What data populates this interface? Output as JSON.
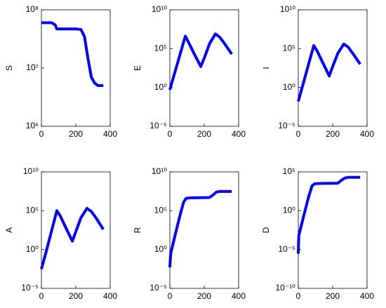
{
  "chart_data": [
    {
      "type": "line",
      "ylabel": "S",
      "log_y": true,
      "xlim": [
        0,
        400
      ],
      "xticks": [
        0,
        200,
        400
      ],
      "ylim": [
        1000000,
        100000000
      ],
      "yticks": [
        {
          "value": 1000000,
          "label": "10⁶"
        },
        {
          "value": 10000000,
          "label": "10⁷"
        },
        {
          "value": 100000000,
          "label": "10⁸"
        }
      ],
      "series": [
        {
          "color": "#0000ff",
          "x": [
            0,
            60,
            80,
            90,
            200,
            230,
            250,
            270,
            290,
            310,
            330,
            360
          ],
          "values": [
            60000000,
            60000000,
            55000000,
            47000000,
            47000000,
            46000000,
            35000000,
            15000000,
            7000000,
            5500000,
            5000000,
            5000000
          ]
        }
      ]
    },
    {
      "type": "line",
      "ylabel": "E",
      "log_y": true,
      "xlim": [
        0,
        400
      ],
      "xticks": [
        0,
        200,
        400
      ],
      "ylim": [
        1e-05,
        10000000000
      ],
      "yticks": [
        {
          "value": 1e-05,
          "label": "10⁻⁵"
        },
        {
          "value": 1,
          "label": "10⁰"
        },
        {
          "value": 100000,
          "label": "10⁵"
        },
        {
          "value": 10000000000,
          "label": "10¹⁰"
        }
      ],
      "series": [
        {
          "color": "#0000ff",
          "x": [
            0,
            30,
            60,
            90,
            110,
            140,
            180,
            200,
            230,
            265,
            290,
            320,
            360
          ],
          "values": [
            0.5,
            100,
            20000,
            4000000,
            600000,
            25000,
            500,
            6000,
            400000,
            8000000,
            3000000,
            400000,
            20000
          ]
        }
      ]
    },
    {
      "type": "line",
      "ylabel": "I",
      "log_y": true,
      "xlim": [
        0,
        400
      ],
      "xticks": [
        0,
        200,
        400
      ],
      "ylim": [
        1e-05,
        10000000000
      ],
      "yticks": [
        {
          "value": 1e-05,
          "label": "10⁻⁵"
        },
        {
          "value": 1,
          "label": "10⁰"
        },
        {
          "value": 100000,
          "label": "10⁵"
        },
        {
          "value": 10000000000,
          "label": "10¹⁰"
        }
      ],
      "series": [
        {
          "color": "#0000ff",
          "x": [
            0,
            30,
            60,
            90,
            110,
            140,
            180,
            200,
            230,
            265,
            290,
            320,
            360
          ],
          "values": [
            0.016,
            4,
            1000,
            250000,
            50000,
            2000,
            30,
            500,
            25000,
            400000,
            160000,
            20000,
            1000
          ]
        }
      ]
    },
    {
      "type": "line",
      "ylabel": "A",
      "log_y": true,
      "xlim": [
        0,
        400
      ],
      "xticks": [
        0,
        200,
        400
      ],
      "ylim": [
        1e-05,
        10000000000
      ],
      "yticks": [
        {
          "value": 1e-05,
          "label": "10⁻⁵"
        },
        {
          "value": 1,
          "label": "10⁰"
        },
        {
          "value": 100000,
          "label": "10⁵"
        },
        {
          "value": 10000000000,
          "label": "10¹⁰"
        }
      ],
      "series": [
        {
          "color": "#0000ff",
          "x": [
            0,
            30,
            60,
            90,
            110,
            140,
            180,
            200,
            230,
            265,
            290,
            320,
            360
          ],
          "values": [
            0.003,
            0.8,
            300,
            100000,
            20000,
            800,
            12,
            200,
            12000,
            200000,
            80000,
            10000,
            400
          ]
        }
      ]
    },
    {
      "type": "line",
      "ylabel": "R",
      "log_y": true,
      "xlim": [
        0,
        400
      ],
      "xticks": [
        0,
        200,
        400
      ],
      "ylim": [
        1e-05,
        10000000000
      ],
      "yticks": [
        {
          "value": 1e-05,
          "label": "10⁻⁵"
        },
        {
          "value": 1,
          "label": "10⁰"
        },
        {
          "value": 100000,
          "label": "10⁵"
        },
        {
          "value": 10000000000,
          "label": "10¹⁰"
        }
      ],
      "series": [
        {
          "color": "#0000ff",
          "x": [
            0,
            5,
            30,
            60,
            80,
            95,
            120,
            230,
            250,
            270,
            290,
            360
          ],
          "values": [
            0.005,
            0.3,
            60,
            30000,
            1300000,
            4000000,
            4500000,
            5000000,
            10000000,
            25000000,
            30000000,
            30000000
          ]
        }
      ]
    },
    {
      "type": "line",
      "ylabel": "D",
      "log_y": true,
      "xlim": [
        0,
        400
      ],
      "xticks": [
        0,
        200,
        400
      ],
      "ylim": [
        1e-10,
        100000
      ],
      "yticks": [
        {
          "value": 1e-10,
          "label": "10⁻¹⁰"
        },
        {
          "value": 1e-05,
          "label": "10⁻⁵"
        },
        {
          "value": 1,
          "label": "10⁰"
        },
        {
          "value": 100000,
          "label": "10⁵"
        }
      ],
      "series": [
        {
          "color": "#0000ff",
          "x": [
            0,
            3,
            30,
            60,
            80,
            95,
            120,
            230,
            250,
            270,
            290,
            360
          ],
          "values": [
            3e-06,
            0.0006,
            0.16,
            60,
            1600,
            3000,
            3200,
            3500,
            8000,
            16000,
            20000,
            20000
          ]
        }
      ]
    }
  ]
}
